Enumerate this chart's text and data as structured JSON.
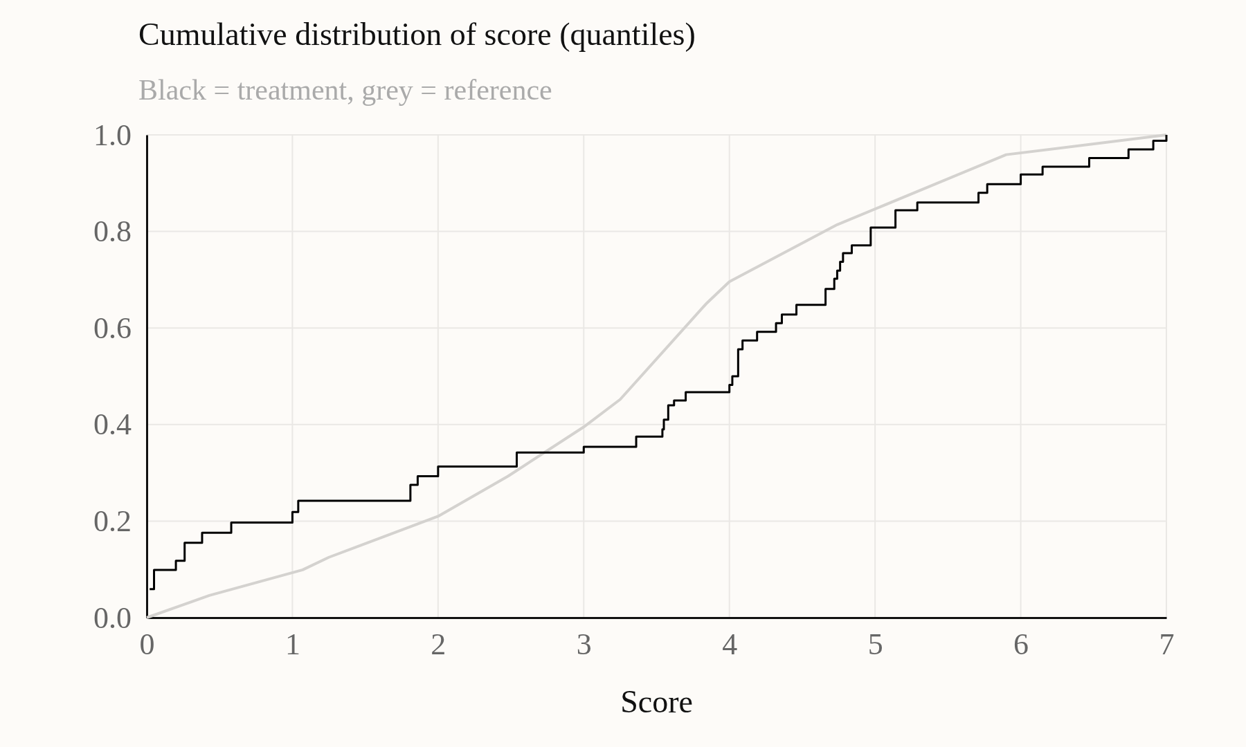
{
  "chart_data": {
    "type": "line",
    "title": "Cumulative distribution of score (quantiles)",
    "subtitle": "Black = treatment, grey = reference",
    "xlabel": "Score",
    "xlim": [
      0,
      7
    ],
    "xticks": [
      0,
      1,
      2,
      3,
      4,
      5,
      6,
      7
    ],
    "ylim": [
      0,
      1
    ],
    "yticks": [
      {
        "value": 0,
        "label": "0.0"
      },
      {
        "value": 0.2,
        "label": "0.2"
      },
      {
        "value": 0.4,
        "label": "0.4"
      },
      {
        "value": 0.6,
        "label": "0.6"
      },
      {
        "value": 0.8,
        "label": "0.8"
      },
      {
        "value": 1,
        "label": "1.0"
      }
    ],
    "grid": true,
    "series": [
      {
        "color": "#d4d2cf",
        "x": [
          0,
          0.43,
          1.07,
          1.25,
          2,
          2.48,
          3,
          3.25,
          3.84,
          4,
          4.74,
          5.9,
          7
        ],
        "values": [
          0,
          0.046,
          0.099,
          0.125,
          0.21,
          0.293,
          0.395,
          0.452,
          0.65,
          0.696,
          0.814,
          0.959,
          1
        ]
      },
      {
        "type": "step",
        "color": "#000000",
        "x": [
          0.02,
          0.05,
          0.2,
          0.26,
          0.38,
          0.58,
          1.0,
          1.04,
          1.81,
          1.86,
          2.0,
          2.54,
          3.0,
          3.36,
          3.54,
          3.55,
          3.58,
          3.62,
          3.7,
          4.0,
          4.02,
          4.06,
          4.09,
          4.19,
          4.32,
          4.36,
          4.46,
          4.66,
          4.72,
          4.74,
          4.76,
          4.78,
          4.84,
          4.97,
          5.14,
          5.29,
          5.71,
          5.77,
          6.0,
          6.15,
          6.47,
          6.74,
          6.91,
          7.0
        ],
        "values": [
          0.059,
          0.099,
          0.118,
          0.155,
          0.176,
          0.197,
          0.219,
          0.242,
          0.275,
          0.293,
          0.313,
          0.342,
          0.354,
          0.375,
          0.39,
          0.41,
          0.44,
          0.45,
          0.467,
          0.482,
          0.5,
          0.556,
          0.574,
          0.592,
          0.61,
          0.628,
          0.648,
          0.681,
          0.702,
          0.719,
          0.737,
          0.755,
          0.771,
          0.808,
          0.844,
          0.86,
          0.88,
          0.898,
          0.918,
          0.934,
          0.952,
          0.97,
          0.988,
          1.0
        ]
      }
    ]
  }
}
